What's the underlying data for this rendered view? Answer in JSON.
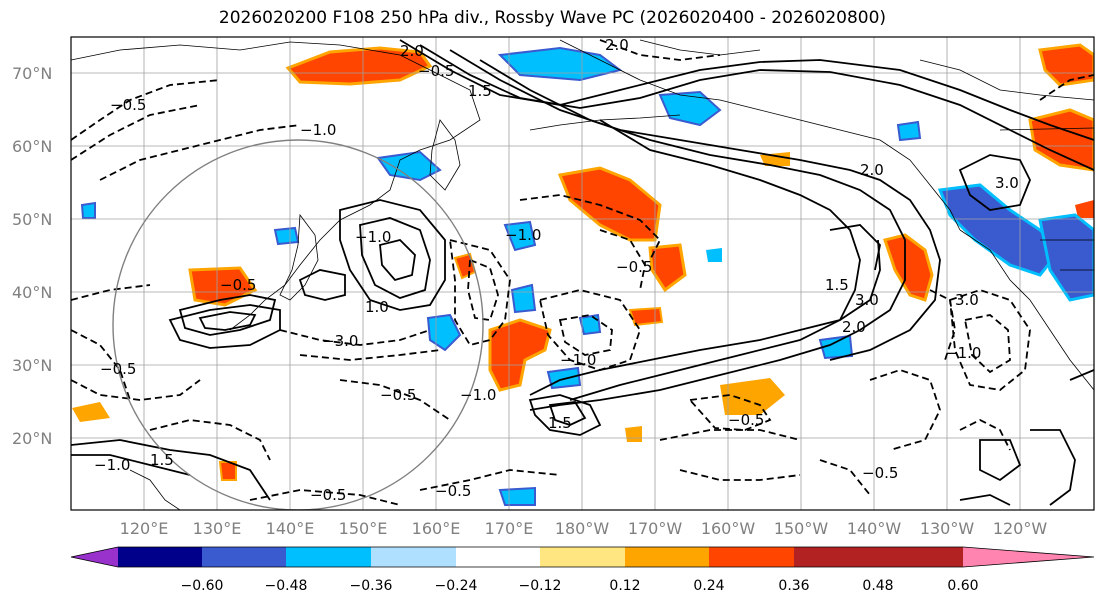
{
  "title": "2026020200 F108 250 hPa div., Rossby Wave PC (2026020400 - 2026020800)",
  "lat_labels": [
    "70°N",
    "60°N",
    "50°N",
    "40°N",
    "30°N",
    "20°N"
  ],
  "lon_labels": [
    "120°E",
    "130°E",
    "140°E",
    "150°E",
    "160°E",
    "170°E",
    "180°W",
    "170°W",
    "160°W",
    "150°W",
    "140°W",
    "130°W",
    "120°W"
  ],
  "colorbar": {
    "ticks": [
      "−0.60",
      "−0.48",
      "−0.36",
      "−0.24",
      "−0.12",
      "0.12",
      "0.24",
      "0.36",
      "0.48",
      "0.60"
    ],
    "colors": [
      "#9932cc",
      "#00008b",
      "#3a5bd0",
      "#00bfff",
      "#b0e0ff",
      "#ffffff",
      "#ffe680",
      "#ffa500",
      "#ff4500",
      "#b22222",
      "#ff85b0"
    ]
  },
  "contour_labels": [
    "2.0",
    "−0.5",
    "1.5",
    "2.0",
    "−1.0",
    "−0.5",
    "−1.0",
    "−0.5",
    "−0.5",
    "−3.0",
    "1.0",
    "−1.0",
    "−1.0",
    "2.0",
    "3.0",
    "1.5",
    "3.0",
    "2.0",
    "1.5",
    "−1.0",
    "−0.5",
    "−0.5",
    "−0.5",
    "1.5",
    "−0.5",
    "−1.0",
    "−0.5",
    "−1.0",
    "−0.5",
    "3.0"
  ]
}
